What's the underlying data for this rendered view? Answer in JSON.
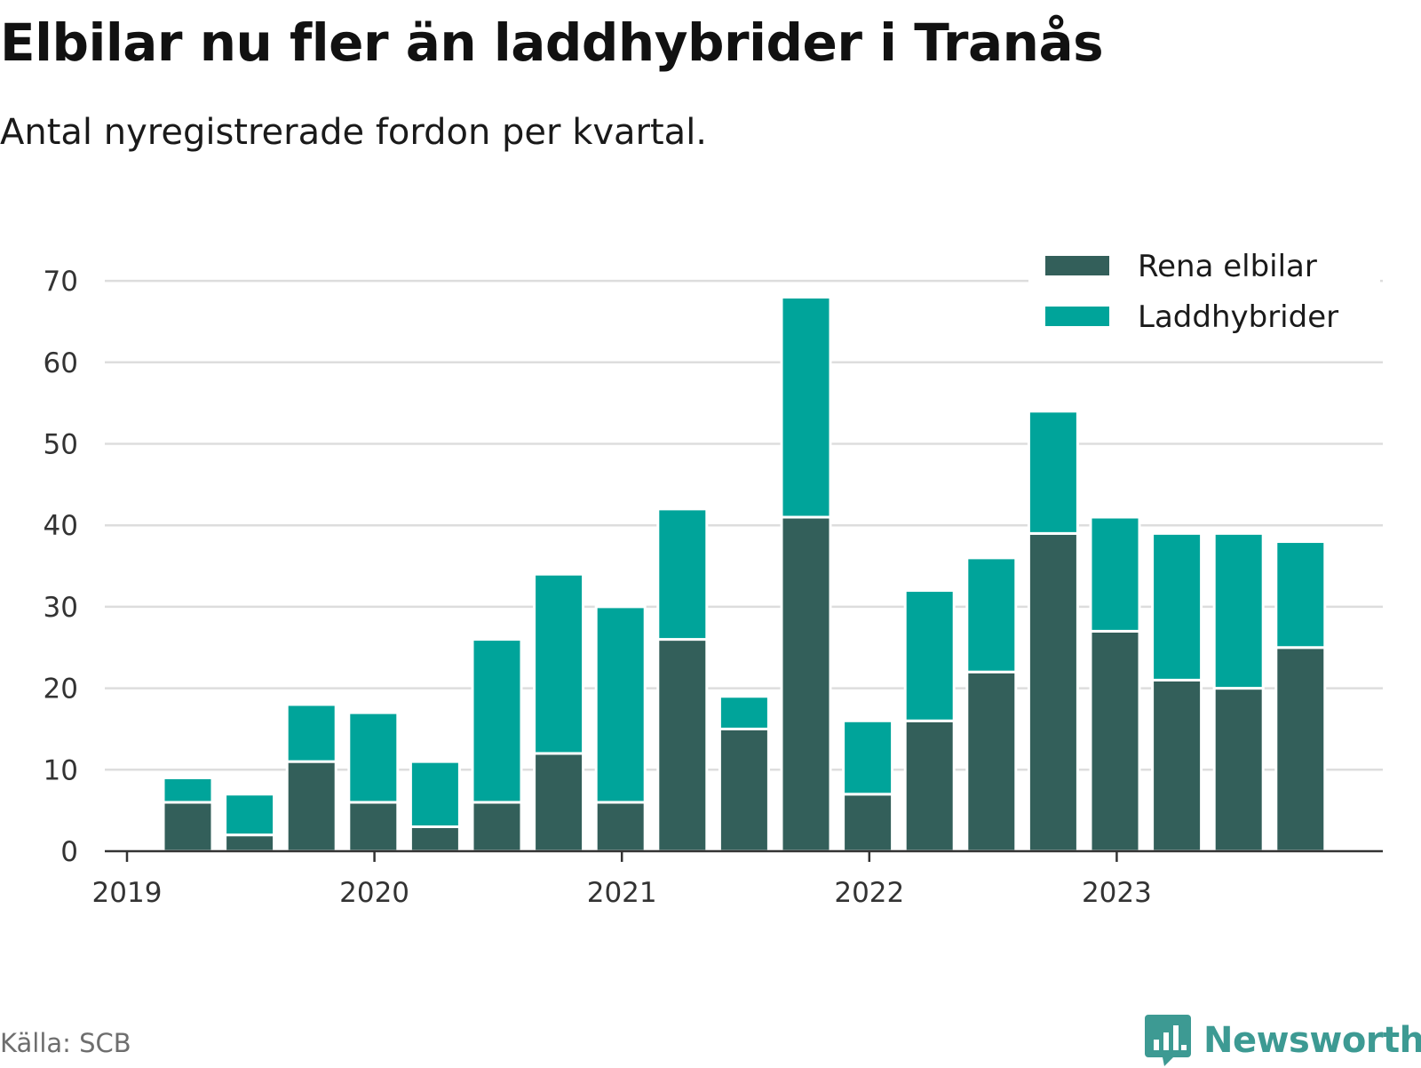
{
  "title": "Elbilar nu fler än laddhybrider i Tranås",
  "subtitle": "Antal nyregistrerade fordon per kvartal.",
  "source": "Källa: SCB",
  "brand": "Newsworthy",
  "colors": {
    "rena_elbilar": "#335f5a",
    "laddhybrider": "#00a49a",
    "grid": "#dddddd",
    "axis": "#333333",
    "brand": "#3d9a93"
  },
  "chart_data": {
    "type": "bar",
    "stacked": true,
    "title": "Elbilar nu fler än laddhybrider i Tranås",
    "subtitle": "Antal nyregistrerade fordon per kvartal.",
    "xlabel": "",
    "ylabel": "",
    "ylim": [
      0,
      70
    ],
    "y_ticks": [
      0,
      10,
      20,
      30,
      40,
      50,
      60,
      70
    ],
    "x_tick_labels": [
      "2019",
      "2020",
      "2021",
      "2022",
      "2023"
    ],
    "legend_position": "top-right",
    "grid": true,
    "categories": [
      "2019 Q2",
      "2019 Q3",
      "2019 Q4",
      "2020 Q1",
      "2020 Q2",
      "2020 Q3",
      "2020 Q4",
      "2021 Q1",
      "2021 Q2",
      "2021 Q3",
      "2021 Q4",
      "2022 Q1",
      "2022 Q2",
      "2022 Q3",
      "2022 Q4",
      "2023 Q1",
      "2023 Q2",
      "2023 Q3",
      "2023 Q4"
    ],
    "series": [
      {
        "name": "Rena elbilar",
        "values": [
          6,
          2,
          11,
          6,
          3,
          6,
          12,
          6,
          26,
          15,
          41,
          7,
          16,
          22,
          39,
          27,
          21,
          20,
          25
        ]
      },
      {
        "name": "Laddhybrider",
        "values": [
          3,
          5,
          7,
          11,
          8,
          20,
          22,
          24,
          16,
          4,
          27,
          9,
          16,
          14,
          15,
          14,
          18,
          19,
          13
        ]
      }
    ]
  }
}
